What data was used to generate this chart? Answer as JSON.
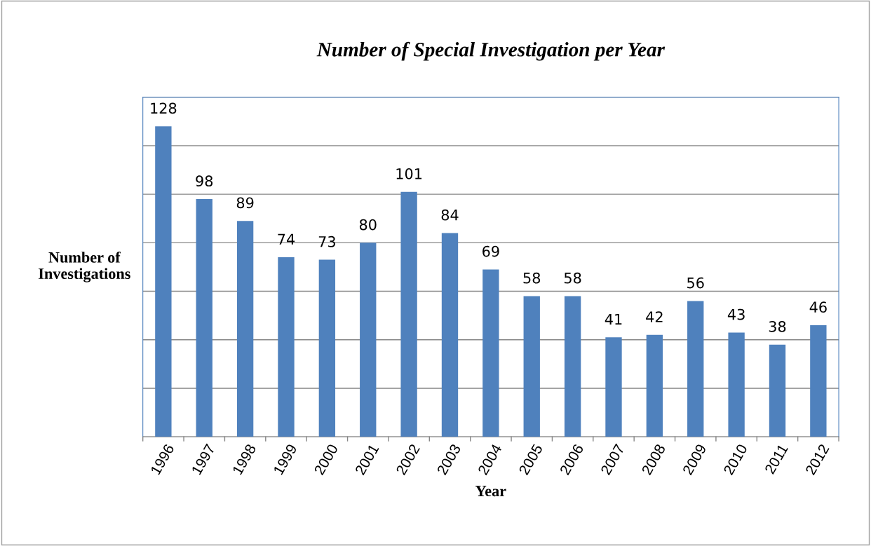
{
  "chart_data": {
    "type": "bar",
    "title": "Number of Special Investigation per Year",
    "xlabel": "Year",
    "ylabel": "Number of\nInvestigations",
    "categories": [
      "1996",
      "1997",
      "1998",
      "1999",
      "2000",
      "2001",
      "2002",
      "2003",
      "2004",
      "2005",
      "2006",
      "2007",
      "2008",
      "2009",
      "2010",
      "2011",
      "2012"
    ],
    "values": [
      128,
      98,
      89,
      74,
      73,
      80,
      101,
      84,
      69,
      58,
      58,
      41,
      42,
      56,
      43,
      38,
      46
    ],
    "color": "#4f81bd",
    "data_labels": true,
    "ylim": [
      0,
      140
    ],
    "yticks": [
      {
        "value": 0,
        "label": null
      },
      {
        "value": 20,
        "label": null
      },
      {
        "value": 40,
        "label": null
      },
      {
        "value": 60,
        "label": null
      },
      {
        "value": 80,
        "label": null
      },
      {
        "value": 100,
        "label": null
      },
      {
        "value": 120,
        "label": null
      },
      {
        "value": 140,
        "label": null
      }
    ],
    "grid": "y",
    "tick_labels": "x"
  }
}
